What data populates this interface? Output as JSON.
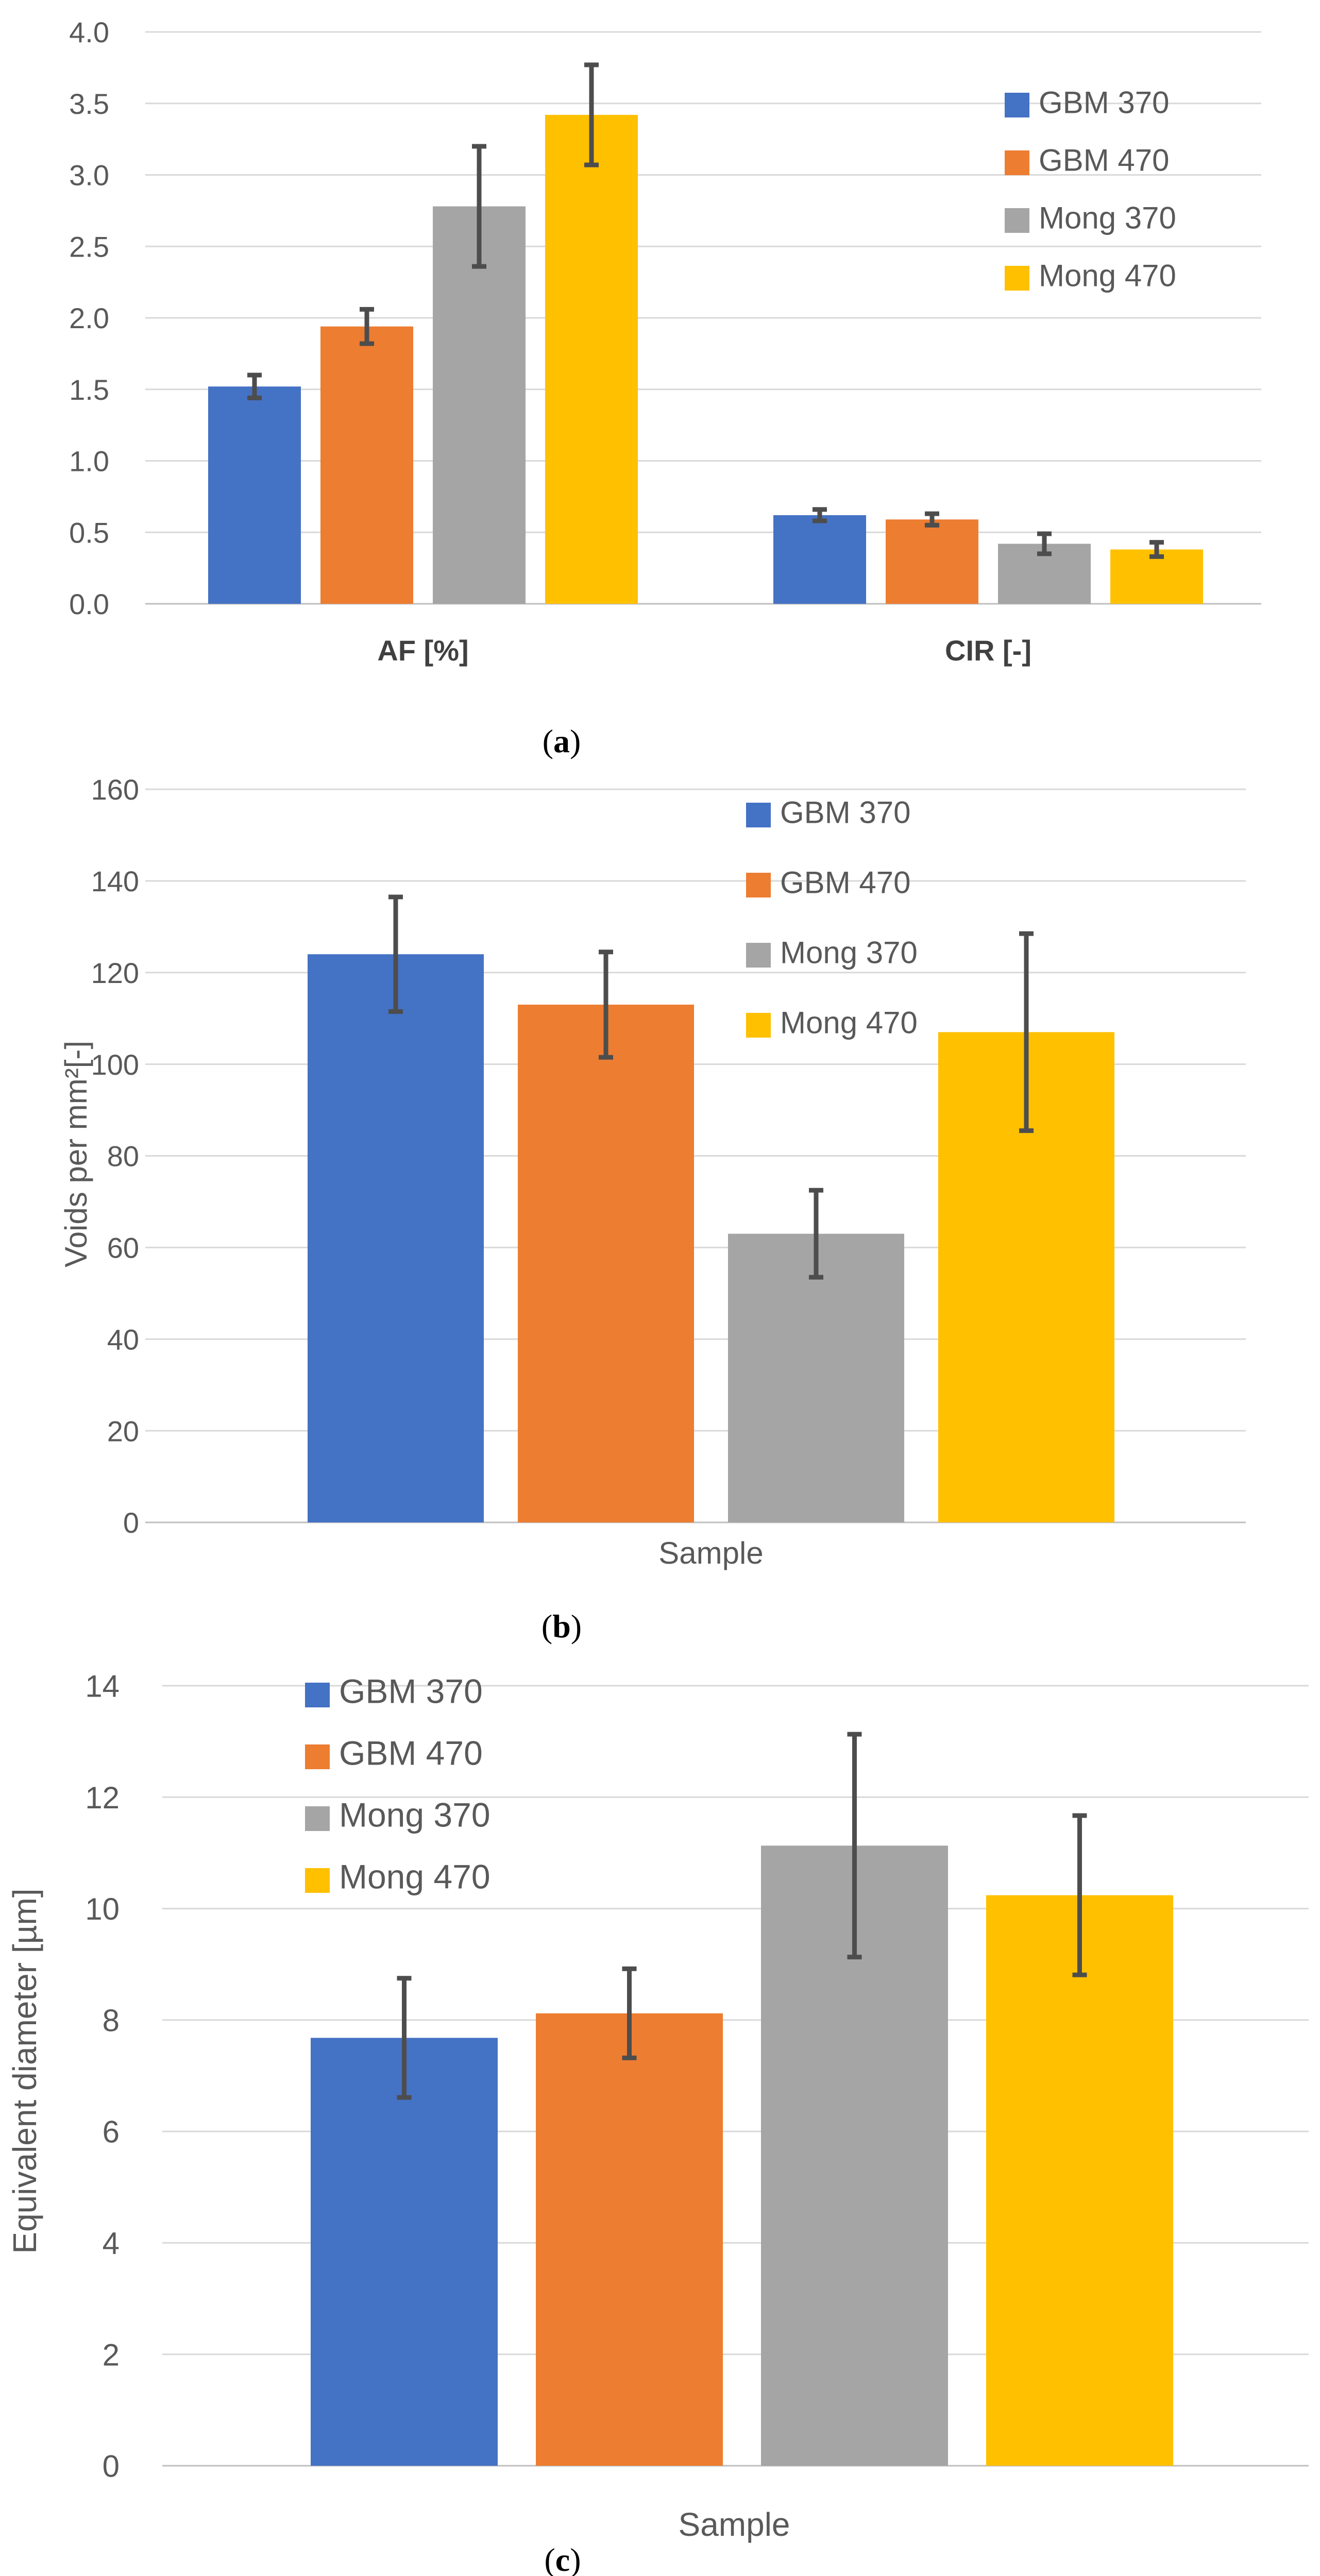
{
  "colors": {
    "GBM 370": "#4472C4",
    "GBM 470": "#ED7D31",
    "Mong 370": "#A5A5A5",
    "Mong 470": "#FFC000",
    "grid": "#D9D9D9",
    "axis": "#BFBFBF",
    "errorbar": "#4D4D4D"
  },
  "chart_data": [
    {
      "id": "a",
      "type": "bar",
      "caption": {
        "open": "(",
        "letter": "a",
        "close": ")"
      },
      "categories": [
        "AF [%]",
        "CIR [-]"
      ],
      "series": [
        {
          "name": "GBM 370",
          "values": [
            1.52,
            0.62
          ],
          "errors": [
            0.08,
            0.04
          ]
        },
        {
          "name": "GBM 470",
          "values": [
            1.94,
            0.59
          ],
          "errors": [
            0.12,
            0.04
          ]
        },
        {
          "name": "Mong 370",
          "values": [
            2.78,
            0.42
          ],
          "errors": [
            0.42,
            0.07
          ]
        },
        {
          "name": "Mong 470",
          "values": [
            3.42,
            0.38
          ],
          "errors": [
            0.35,
            0.05
          ]
        }
      ],
      "xlabel": "",
      "ylabel": "",
      "ylim": [
        0,
        4
      ],
      "yticks": [
        "0.0",
        "0.5",
        "1.0",
        "1.5",
        "2.0",
        "2.5",
        "3.0",
        "3.5",
        "4.0"
      ],
      "grid": true,
      "legend_position": "top-right"
    },
    {
      "id": "b",
      "type": "bar",
      "caption": {
        "open": "(",
        "letter": "b",
        "close": ")"
      },
      "categories": [
        ""
      ],
      "series": [
        {
          "name": "GBM 370",
          "values": [
            124
          ],
          "errors": [
            12.5
          ]
        },
        {
          "name": "GBM 470",
          "values": [
            113
          ],
          "errors": [
            11.5
          ]
        },
        {
          "name": "Mong 370",
          "values": [
            63
          ],
          "errors": [
            9.5
          ]
        },
        {
          "name": "Mong 470",
          "values": [
            107
          ],
          "errors": [
            21.5
          ]
        }
      ],
      "xlabel": "Sample",
      "ylabel": "Voids per mm²[-]",
      "ylim": [
        0,
        160
      ],
      "yticks": [
        "0",
        "20",
        "40",
        "60",
        "80",
        "100",
        "120",
        "140",
        "160"
      ],
      "grid": true,
      "legend_position": "top-center"
    },
    {
      "id": "c",
      "type": "bar",
      "caption": {
        "open": "(",
        "letter": "c",
        "close": ")"
      },
      "categories": [
        ""
      ],
      "series": [
        {
          "name": "GBM 370",
          "values": [
            7.68
          ],
          "errors": [
            1.07
          ]
        },
        {
          "name": "GBM 470",
          "values": [
            8.12
          ],
          "errors": [
            0.8
          ]
        },
        {
          "name": "Mong 370",
          "values": [
            11.13
          ],
          "errors": [
            2.0
          ]
        },
        {
          "name": "Mong 470",
          "values": [
            10.24
          ],
          "errors": [
            1.43
          ]
        }
      ],
      "xlabel": "Sample",
      "ylabel": "Equivalent diameter [µm]",
      "ylim": [
        0,
        14
      ],
      "yticks": [
        "0",
        "2",
        "4",
        "6",
        "8",
        "10",
        "12",
        "14"
      ],
      "grid": true,
      "legend_position": "top-left"
    }
  ]
}
